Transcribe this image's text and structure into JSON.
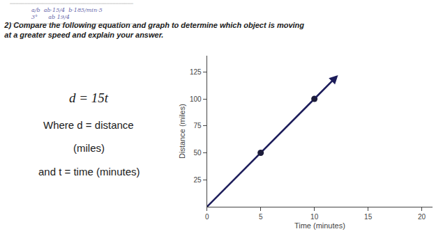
{
  "chart_data": {
    "type": "line",
    "title": [
      "2) Compare the following equation and graph to determine which object is moving",
      "at a greater speed and explain your answer."
    ],
    "annotations": [
      "——————————————————————————————————————————",
      "a/b  ab·15/4  b·185/min·5",
      "3°      ab 19/4",
      "——————————————————————————————————————————",
      "d = 15t",
      "Where d = distance",
      "(miles)",
      "and t = time (minutes)"
    ],
    "xlabel": "Time (minutes)",
    "ylabel": "Distance (miles)",
    "series": [
      {
        "type": "line",
        "x": [
          0,
          10
        ],
        "values": [
          0,
          100
        ],
        "color": "#1c1c5a"
      },
      {
        "type": "scatter",
        "x": [
          5,
          10
        ],
        "values": [
          50,
          100
        ],
        "color": "#1c1c3a",
        "marker": "circle"
      },
      {
        "type": "arrow",
        "x": [
          10,
          12.2
        ],
        "values": [
          100,
          122
        ],
        "color": "#1c1c5a"
      }
    ],
    "xlim": [
      0,
      21
    ],
    "ylim": [
      0,
      140
    ],
    "xticks": [
      0,
      5,
      10,
      15,
      20
    ],
    "yticks": [
      25,
      50,
      75,
      100,
      125
    ],
    "grid": false
  }
}
